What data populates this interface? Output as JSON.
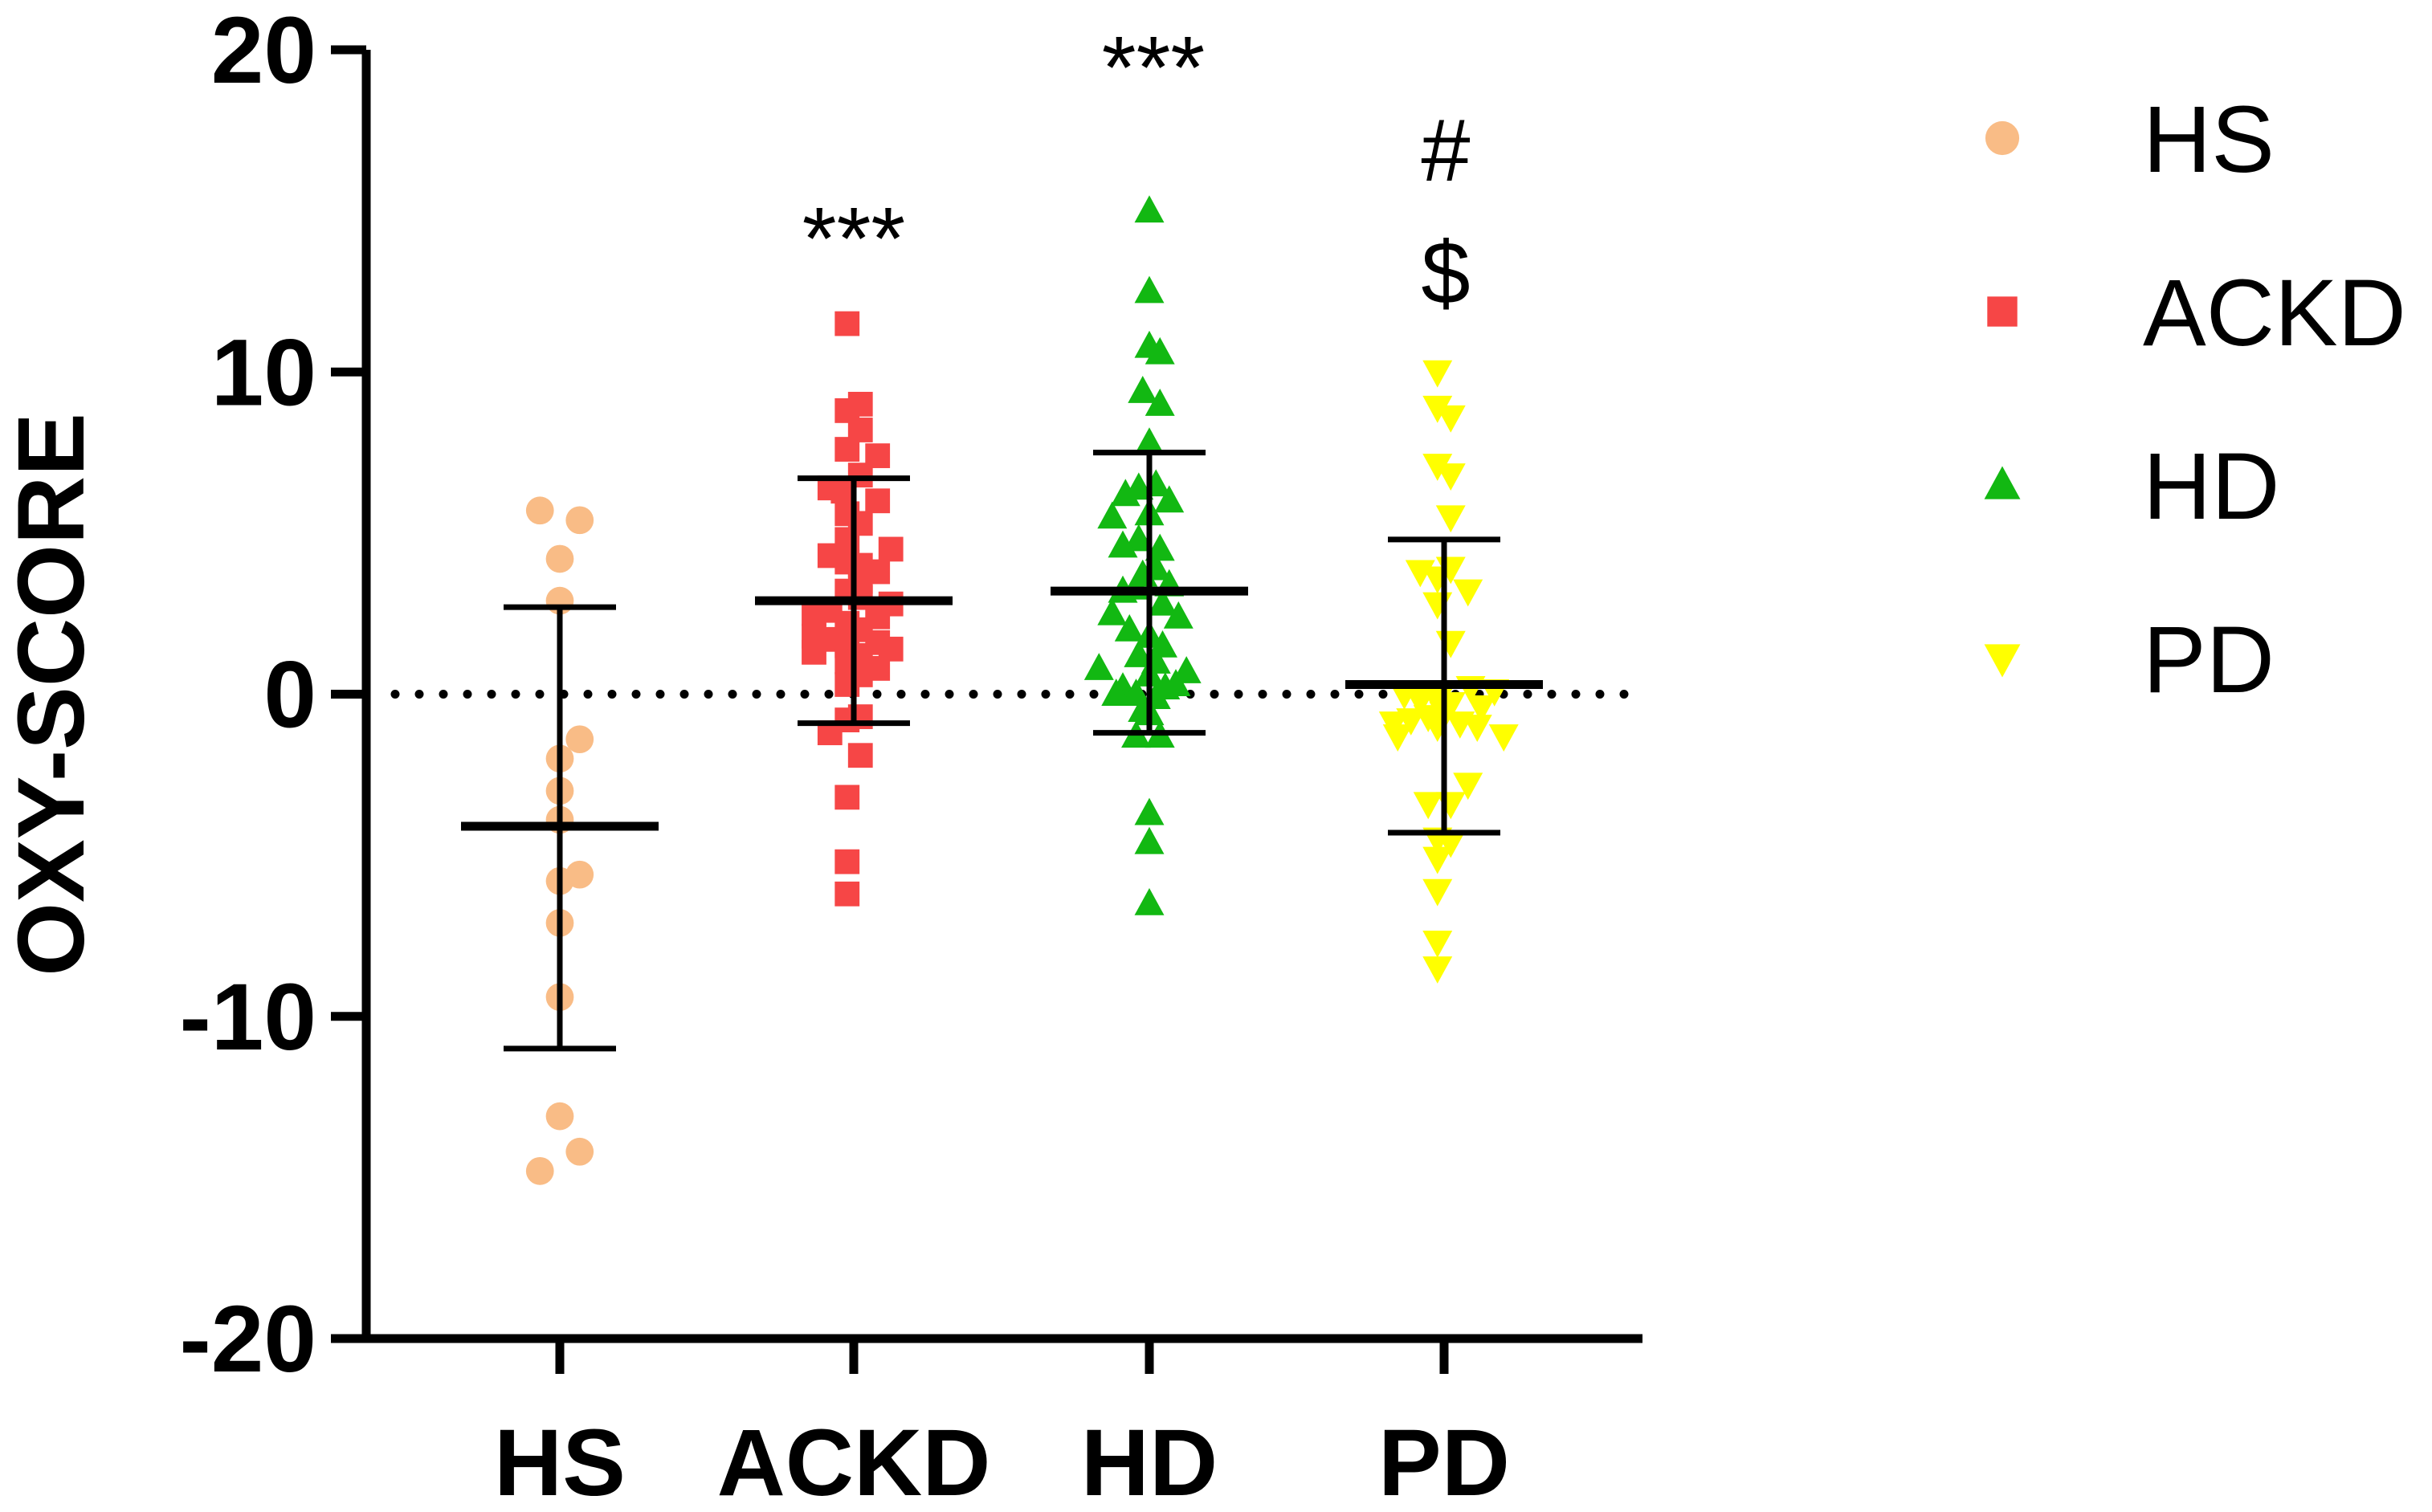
{
  "chart_data": {
    "type": "scatter",
    "title": "",
    "xlabel": "",
    "ylabel": "OXY-SCORE",
    "ylim": [
      -20,
      20
    ],
    "yticks": [
      "20",
      "10",
      "0",
      "-10",
      "-20"
    ],
    "ytick_values": [
      20,
      10,
      0,
      -10,
      -20
    ],
    "reference_line": {
      "y": 0,
      "style": "dotted"
    },
    "legend_position": "right",
    "categories": [
      "HS",
      "ACKD",
      "HD",
      "PD"
    ],
    "series": [
      {
        "name": "HS",
        "category": "HS",
        "marker": "circle",
        "color": "#F9BC86",
        "mean": -4.1,
        "sd_upper": 2.7,
        "sd_lower": -11.0,
        "annotations": [],
        "points": [
          {
            "x": -0.15,
            "y": 5.7
          },
          {
            "x": 0.15,
            "y": 5.4
          },
          {
            "x": 0.0,
            "y": 4.2
          },
          {
            "x": 0.0,
            "y": 2.9
          },
          {
            "x": 0.15,
            "y": -1.4
          },
          {
            "x": 0.0,
            "y": -2.0
          },
          {
            "x": 0.0,
            "y": -3.0
          },
          {
            "x": 0.0,
            "y": -3.9
          },
          {
            "x": 0.0,
            "y": -5.8
          },
          {
            "x": 0.15,
            "y": -5.6
          },
          {
            "x": 0.0,
            "y": -7.1
          },
          {
            "x": 0.0,
            "y": -9.4
          },
          {
            "x": 0.0,
            "y": -13.1
          },
          {
            "x": 0.15,
            "y": -14.2
          },
          {
            "x": -0.15,
            "y": -14.8
          }
        ]
      },
      {
        "name": "ACKD",
        "category": "ACKD",
        "marker": "square",
        "color": "#F64646",
        "mean": 2.9,
        "sd_upper": 6.7,
        "sd_lower": -0.9,
        "annotations": [
          "***"
        ],
        "points": [
          {
            "x": -0.05,
            "y": 11.5
          },
          {
            "x": 0.05,
            "y": 9.0
          },
          {
            "x": -0.05,
            "y": 8.8
          },
          {
            "x": 0.05,
            "y": 8.2
          },
          {
            "x": -0.05,
            "y": 7.6
          },
          {
            "x": 0.18,
            "y": 7.4
          },
          {
            "x": 0.05,
            "y": 6.8
          },
          {
            "x": -0.18,
            "y": 6.4
          },
          {
            "x": -0.08,
            "y": 6.3
          },
          {
            "x": 0.18,
            "y": 6.0
          },
          {
            "x": -0.05,
            "y": 5.6
          },
          {
            "x": 0.05,
            "y": 5.3
          },
          {
            "x": -0.05,
            "y": 4.8
          },
          {
            "x": 0.28,
            "y": 4.5
          },
          {
            "x": -0.18,
            "y": 4.3
          },
          {
            "x": -0.05,
            "y": 4.1
          },
          {
            "x": 0.05,
            "y": 4.0
          },
          {
            "x": 0.18,
            "y": 3.8
          },
          {
            "x": 0.05,
            "y": 3.5
          },
          {
            "x": -0.05,
            "y": 3.2
          },
          {
            "x": 0.05,
            "y": 3.0
          },
          {
            "x": 0.28,
            "y": 2.8
          },
          {
            "x": -0.3,
            "y": 2.5
          },
          {
            "x": -0.18,
            "y": 2.6
          },
          {
            "x": 0.18,
            "y": 2.4
          },
          {
            "x": -0.05,
            "y": 2.2
          },
          {
            "x": 0.05,
            "y": 2.0
          },
          {
            "x": -0.3,
            "y": 1.8
          },
          {
            "x": -0.18,
            "y": 1.7
          },
          {
            "x": 0.18,
            "y": 1.6
          },
          {
            "x": -0.05,
            "y": 1.5
          },
          {
            "x": 0.28,
            "y": 1.4
          },
          {
            "x": -0.3,
            "y": 1.3
          },
          {
            "x": 0.05,
            "y": 1.2
          },
          {
            "x": -0.05,
            "y": 1.0
          },
          {
            "x": 0.18,
            "y": 0.8
          },
          {
            "x": 0.05,
            "y": 0.6
          },
          {
            "x": -0.05,
            "y": 0.3
          },
          {
            "x": 0.05,
            "y": -0.7
          },
          {
            "x": -0.05,
            "y": -0.8
          },
          {
            "x": -0.18,
            "y": -1.2
          },
          {
            "x": 0.05,
            "y": -1.9
          },
          {
            "x": -0.05,
            "y": -3.2
          },
          {
            "x": -0.05,
            "y": -5.2
          },
          {
            "x": -0.05,
            "y": -6.2
          }
        ]
      },
      {
        "name": "HD",
        "category": "HD",
        "marker": "triangle-up",
        "color": "#12B812",
        "mean": 3.2,
        "sd_upper": 7.5,
        "sd_lower": -1.2,
        "annotations": [
          "***"
        ],
        "points": [
          {
            "x": 0.0,
            "y": 15.0
          },
          {
            "x": 0.0,
            "y": 12.5
          },
          {
            "x": 0.0,
            "y": 10.8
          },
          {
            "x": 0.08,
            "y": 10.6
          },
          {
            "x": -0.05,
            "y": 9.4
          },
          {
            "x": 0.08,
            "y": 9.0
          },
          {
            "x": 0.0,
            "y": 7.8
          },
          {
            "x": -0.18,
            "y": 6.2
          },
          {
            "x": -0.08,
            "y": 6.4
          },
          {
            "x": 0.05,
            "y": 6.5
          },
          {
            "x": 0.15,
            "y": 6.0
          },
          {
            "x": -0.28,
            "y": 5.5
          },
          {
            "x": 0.0,
            "y": 5.6
          },
          {
            "x": -0.08,
            "y": 4.8
          },
          {
            "x": -0.2,
            "y": 4.6
          },
          {
            "x": 0.08,
            "y": 4.5
          },
          {
            "x": -0.05,
            "y": 3.7
          },
          {
            "x": 0.05,
            "y": 3.9
          },
          {
            "x": 0.15,
            "y": 3.4
          },
          {
            "x": -0.2,
            "y": 3.2
          },
          {
            "x": -0.1,
            "y": 3.3
          },
          {
            "x": 0.1,
            "y": 2.8
          },
          {
            "x": -0.28,
            "y": 2.5
          },
          {
            "x": 0.22,
            "y": 2.4
          },
          {
            "x": -0.15,
            "y": 2.0
          },
          {
            "x": 0.0,
            "y": 1.8
          },
          {
            "x": 0.1,
            "y": 1.5
          },
          {
            "x": -0.08,
            "y": 1.2
          },
          {
            "x": 0.05,
            "y": 1.0
          },
          {
            "x": -0.38,
            "y": 0.8
          },
          {
            "x": 0.28,
            "y": 0.7
          },
          {
            "x": 0.0,
            "y": 0.6
          },
          {
            "x": -0.2,
            "y": 0.2
          },
          {
            "x": 0.12,
            "y": 0.2
          },
          {
            "x": -0.1,
            "y": 0.0
          },
          {
            "x": 0.2,
            "y": 0.3
          },
          {
            "x": -0.25,
            "y": 0.0
          },
          {
            "x": 0.05,
            "y": -0.1
          },
          {
            "x": -0.05,
            "y": -0.5
          },
          {
            "x": 0.0,
            "y": -0.6
          },
          {
            "x": -0.1,
            "y": -1.3
          },
          {
            "x": 0.08,
            "y": -1.3
          },
          {
            "x": 0.0,
            "y": -3.7
          },
          {
            "x": 0.0,
            "y": -4.6
          },
          {
            "x": 0.0,
            "y": -6.5
          }
        ]
      },
      {
        "name": "PD",
        "category": "PD",
        "marker": "triangle-down",
        "color": "#FFFF00",
        "mean": 0.3,
        "sd_upper": 4.8,
        "sd_lower": -4.3,
        "annotations": [
          "#",
          "$"
        ],
        "points": [
          {
            "x": -0.05,
            "y": 10.0
          },
          {
            "x": -0.05,
            "y": 8.9
          },
          {
            "x": 0.05,
            "y": 8.6
          },
          {
            "x": -0.05,
            "y": 7.1
          },
          {
            "x": 0.05,
            "y": 6.8
          },
          {
            "x": 0.05,
            "y": 5.5
          },
          {
            "x": -0.18,
            "y": 3.8
          },
          {
            "x": -0.05,
            "y": 3.6
          },
          {
            "x": 0.05,
            "y": 3.9
          },
          {
            "x": 0.18,
            "y": 3.2
          },
          {
            "x": -0.05,
            "y": 2.8
          },
          {
            "x": 0.05,
            "y": 1.6
          },
          {
            "x": -0.3,
            "y": 0.0
          },
          {
            "x": -0.18,
            "y": -0.2
          },
          {
            "x": 0.2,
            "y": 0.2
          },
          {
            "x": 0.38,
            "y": 0.1
          },
          {
            "x": -0.05,
            "y": -0.2
          },
          {
            "x": 0.05,
            "y": -0.3
          },
          {
            "x": 0.28,
            "y": -0.4
          },
          {
            "x": -0.38,
            "y": -0.9
          },
          {
            "x": -0.25,
            "y": -0.8
          },
          {
            "x": -0.12,
            "y": -0.7
          },
          {
            "x": 0.0,
            "y": -0.6
          },
          {
            "x": 0.12,
            "y": -0.9
          },
          {
            "x": 0.25,
            "y": -1.0
          },
          {
            "x": 0.45,
            "y": -1.3
          },
          {
            "x": -0.35,
            "y": -1.3
          },
          {
            "x": -0.05,
            "y": -1.0
          },
          {
            "x": 0.18,
            "y": -2.8
          },
          {
            "x": -0.12,
            "y": -3.4
          },
          {
            "x": 0.05,
            "y": -3.4
          },
          {
            "x": -0.05,
            "y": -4.5
          },
          {
            "x": 0.05,
            "y": -4.6
          },
          {
            "x": -0.05,
            "y": -5.1
          },
          {
            "x": -0.05,
            "y": -6.1
          },
          {
            "x": -0.05,
            "y": -7.7
          },
          {
            "x": -0.05,
            "y": -8.5
          }
        ]
      }
    ]
  }
}
